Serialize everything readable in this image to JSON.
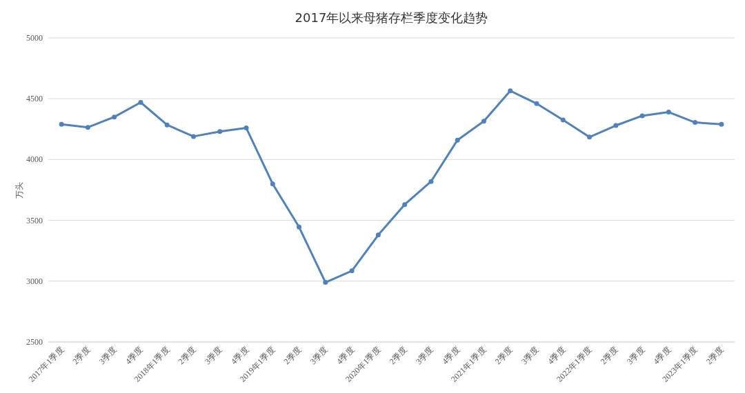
{
  "chart_data": {
    "type": "line",
    "title": "2017年以来母猪存栏季度变化趋势",
    "ylabel": "万头",
    "categories": [
      "2017年1季度",
      "2季度",
      "3季度",
      "4季度",
      "2018年1季度",
      "2季度",
      "3季度",
      "4季度",
      "2019年1季度",
      "2季度",
      "3季度",
      "4季度",
      "2020年1季度",
      "2季度",
      "3季度",
      "4季度",
      "2021年1季度",
      "2季度",
      "3季度",
      "4季度",
      "2022年1季度",
      "2季度",
      "3季度",
      "4季度",
      "2023年1季度",
      "2季度"
    ],
    "series": [
      {
        "color": "#4f81bd",
        "values": [
          4290,
          4265,
          4350,
          4470,
          4285,
          4190,
          4230,
          4260,
          3800,
          3445,
          2990,
          3085,
          3380,
          3630,
          3820,
          4160,
          4315,
          4565,
          4460,
          4325,
          4185,
          4280,
          4360,
          4390,
          4305,
          4290
        ]
      }
    ],
    "ylim": [
      2500,
      5000
    ],
    "yticks": [
      2500,
      3000,
      3500,
      4000,
      4500,
      5000
    ],
    "grid": "y",
    "marker": "circle",
    "line_style": "solid"
  }
}
